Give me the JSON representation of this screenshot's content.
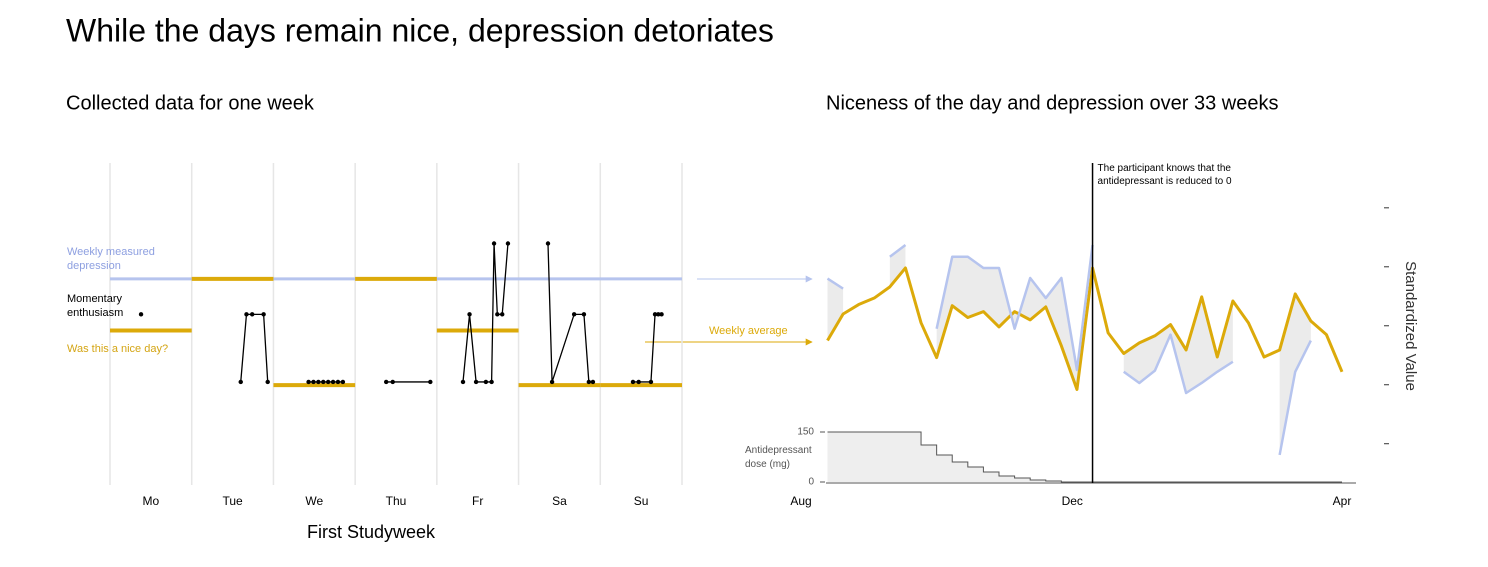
{
  "title": "While the days remain nice, depression detoriates",
  "chart_data": [
    {
      "type": "week",
      "title": "Collected data for one week",
      "x_label": "First Studyweek",
      "categories": [
        "Mo",
        "Tue",
        "We",
        "Thu",
        "Fr",
        "Sa",
        "Su"
      ],
      "xlim": [
        0,
        7
      ],
      "ylim": [
        0,
        100
      ],
      "depression": {
        "name": "Weekly measured depression",
        "color": "#b6c4ee",
        "value": 64
      },
      "nice_day": {
        "name": "Was this a nice day?",
        "color": "#dcaa0a",
        "values": [
          48,
          64,
          31,
          64,
          48,
          31,
          31
        ]
      },
      "enthusiasm": {
        "name": "Momentary enthusiasm",
        "color": "#000000",
        "days": [
          {
            "x": [
              0.38
            ],
            "values": [
              53
            ]
          },
          {
            "x": [
              1.6,
              1.67,
              1.74,
              1.88,
              1.93
            ],
            "values": [
              32,
              53,
              53,
              53,
              32
            ]
          },
          {
            "x": [
              2.43,
              2.49,
              2.55,
              2.61,
              2.67,
              2.73,
              2.79,
              2.85
            ],
            "values": [
              32,
              32,
              32,
              32,
              32,
              32,
              32,
              32
            ]
          },
          {
            "x": [
              3.38,
              3.46,
              3.92
            ],
            "values": [
              32,
              32,
              32
            ]
          },
          {
            "x": [
              4.32,
              4.4,
              4.48,
              4.6,
              4.67,
              4.7,
              4.74,
              4.8,
              4.87
            ],
            "values": [
              32,
              53,
              32,
              32,
              32,
              75,
              53,
              53,
              75
            ]
          },
          {
            "x": [
              5.36,
              5.41,
              5.68,
              5.8,
              5.86,
              5.91
            ],
            "values": [
              75,
              32,
              53,
              53,
              32,
              32
            ]
          },
          {
            "x": [
              6.4,
              6.47,
              6.62,
              6.67,
              6.71,
              6.75
            ],
            "values": [
              32,
              32,
              32,
              53,
              53,
              53
            ]
          }
        ]
      }
    },
    {
      "type": "line",
      "title": "Niceness of the day and depression over 33 weeks",
      "y_label": "Standardized Value",
      "xlim": [
        0,
        34.7
      ],
      "xticks": [
        {
          "value": 0,
          "label": "Aug"
        },
        {
          "value": 17.4,
          "label": "Dec"
        },
        {
          "value": 34.7,
          "label": "Apr"
        }
      ],
      "ylim": [
        -2.7,
        2.76
      ],
      "yticks": [
        -2,
        -1,
        0,
        1,
        2
      ],
      "x": [
        1.7,
        2.7,
        3.7,
        4.7,
        5.7,
        6.7,
        7.7,
        8.7,
        9.7,
        10.7,
        11.7,
        12.7,
        13.7,
        14.7,
        15.7,
        16.7,
        17.7,
        18.7,
        19.7,
        20.7,
        21.7,
        22.7,
        23.7,
        24.7,
        25.7,
        26.7,
        27.7,
        28.7,
        29.7,
        30.7,
        31.7,
        32.7,
        33.7,
        34.7
      ],
      "series": [
        {
          "name": "Weekly average",
          "color": "#dcaa0a",
          "values": [
            -0.25,
            0.2,
            0.36,
            0.47,
            0.66,
            0.98,
            0.05,
            -0.54,
            0.34,
            0.14,
            0.24,
            -0.02,
            0.24,
            0.1,
            0.32,
            -0.34,
            -1.08,
            0.98,
            -0.12,
            -0.47,
            -0.29,
            -0.17,
            0.02,
            -0.41,
            0.49,
            -0.53,
            0.42,
            0.05,
            -0.53,
            -0.41,
            0.54,
            0.08,
            -0.15,
            -0.78
          ]
        },
        {
          "color": "#b6c4ee",
          "values": [
            0.8,
            0.63,
            null,
            null,
            1.17,
            1.37,
            null,
            -0.05,
            1.17,
            1.17,
            0.98,
            0.98,
            -0.05,
            0.81,
            0.47,
            0.81,
            -0.75,
            1.37,
            null,
            -0.78,
            -0.97,
            -0.76,
            -0.15,
            -1.14,
            -0.97,
            -0.78,
            -0.61,
            null,
            null,
            -2.19,
            -0.78,
            -0.25,
            null,
            null
          ]
        }
      ],
      "annotation": {
        "x": 18.7,
        "text": "The participant knows that the antidepressant is reduced to 0"
      },
      "dose": {
        "label": "Antidepressant dose (mg)",
        "ylim": [
          0,
          150
        ],
        "yticks": [
          0,
          150
        ],
        "values": [
          150,
          150,
          150,
          150,
          150,
          150,
          111,
          81,
          60,
          45,
          30,
          18,
          12,
          6,
          3,
          0,
          0,
          0,
          0,
          0,
          0,
          0,
          0,
          0,
          0,
          0,
          0,
          0,
          0,
          0,
          0,
          0,
          0,
          0
        ]
      }
    }
  ]
}
